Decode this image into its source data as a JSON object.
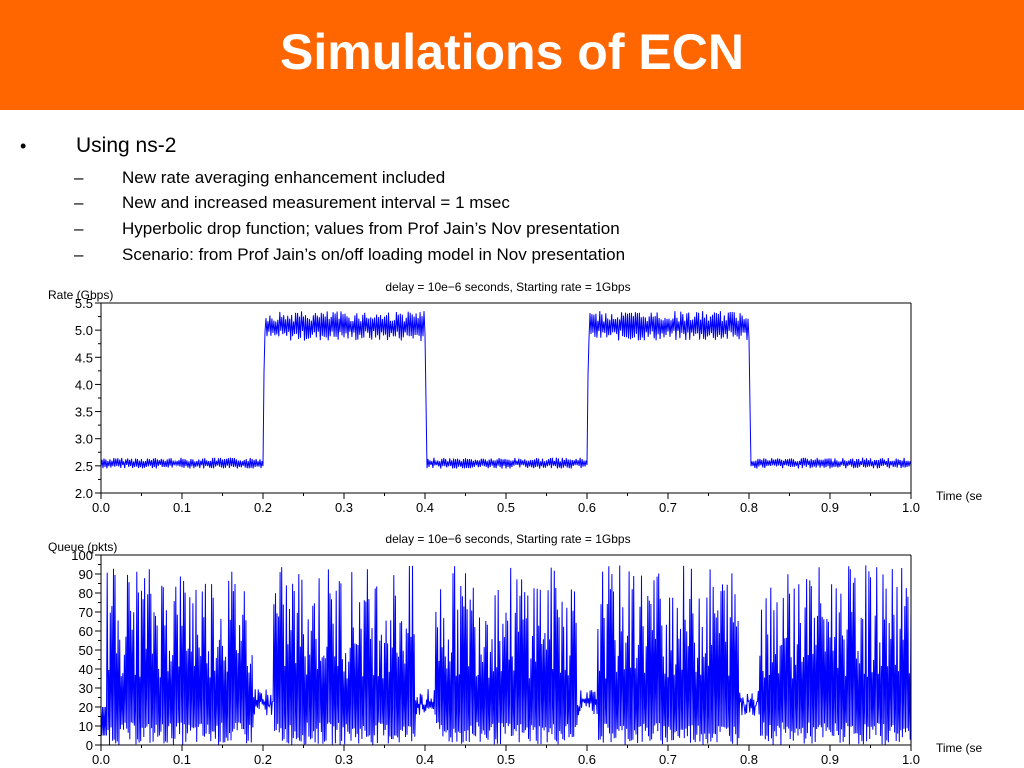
{
  "title": "Simulations of ECN",
  "theme": {
    "accent": "#FF6600",
    "series_color": "#0000FF"
  },
  "bullets": {
    "mark": "•",
    "main": "Using ns-2",
    "sub_mark": "–",
    "subs": [
      "New rate averaging enhancement included",
      "New and increased measurement interval = 1 msec",
      "Hyperbolic drop function; values from Prof Jain’s Nov presentation",
      "Scenario: from Prof Jain’s on/off loading model in Nov presentation"
    ]
  },
  "chart_data": [
    {
      "type": "line",
      "title": "delay = 10e−6 seconds, Starting rate = 1Gbps",
      "ylabel": "Rate (Gbps)",
      "xlabel": "Time (se",
      "xlim": [
        0.0,
        1.0
      ],
      "ylim": [
        2.0,
        5.5
      ],
      "xticks": [
        "0.0",
        "0.1",
        "0.2",
        "0.3",
        "0.4",
        "0.5",
        "0.6",
        "0.7",
        "0.8",
        "0.9",
        "1.0"
      ],
      "yticks": [
        "2.0",
        "2.5",
        "3.0",
        "3.5",
        "4.0",
        "4.5",
        "5.0",
        "5.5"
      ],
      "grid": false,
      "series": [
        {
          "x": [
            0.0,
            0.2,
            0.202,
            0.4,
            0.402,
            0.6,
            0.602,
            0.8,
            0.802,
            1.0
          ],
          "y_low": [
            2.45,
            2.45,
            4.8,
            4.8,
            2.45,
            2.45,
            4.8,
            4.8,
            2.45,
            2.45
          ],
          "y_high": [
            2.65,
            2.65,
            5.35,
            5.35,
            2.65,
            2.65,
            5.35,
            5.35,
            2.65,
            2.65
          ]
        }
      ]
    },
    {
      "type": "line",
      "title": "delay = 10e−6 seconds, Starting rate = 1Gbps",
      "ylabel": "Queue (pkts)",
      "xlabel": "Time (se",
      "xlim": [
        0.0,
        1.0
      ],
      "ylim": [
        0,
        100
      ],
      "xticks": [
        "0.0",
        "0.1",
        "0.2",
        "0.3",
        "0.4",
        "0.5",
        "0.6",
        "0.7",
        "0.8",
        "0.9",
        "1.0"
      ],
      "yticks": [
        "0",
        "10",
        "20",
        "30",
        "40",
        "50",
        "60",
        "70",
        "80",
        "90",
        "100"
      ],
      "grid": false,
      "series": [
        {
          "x": [
            0.0,
            0.2,
            0.4,
            0.6,
            0.8,
            1.0
          ],
          "y_low": [
            0,
            0,
            0,
            0,
            0,
            0
          ],
          "y_high": [
            95,
            95,
            95,
            95,
            95,
            95
          ]
        }
      ]
    }
  ]
}
